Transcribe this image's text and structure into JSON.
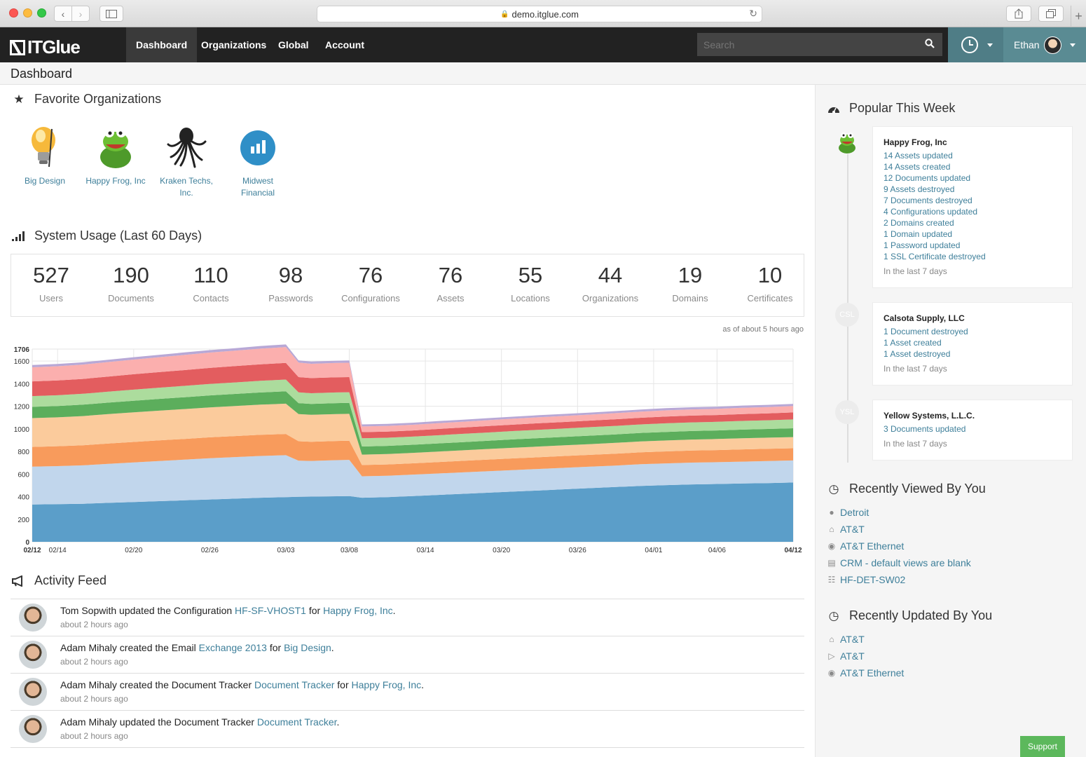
{
  "browser": {
    "url": "demo.itglue.com"
  },
  "nav": {
    "logo_text": "ITGlue",
    "items": [
      "Dashboard",
      "Organizations",
      "Global",
      "Account"
    ],
    "search_placeholder": "Search",
    "user_name": "Ethan"
  },
  "page_title": "Dashboard",
  "favorites": {
    "title": "Favorite Organizations",
    "orgs": [
      {
        "name": "Big Design",
        "icon": "lightbulb-logo"
      },
      {
        "name": "Happy Frog, Inc",
        "icon": "frog-logo"
      },
      {
        "name": "Kraken Techs, Inc.",
        "icon": "kraken-logo"
      },
      {
        "name": "Midwest Financial",
        "icon": "bar-chart-logo"
      }
    ]
  },
  "usage": {
    "title": "System Usage (Last 60 Days)",
    "stats": [
      {
        "value": "527",
        "label": "Users"
      },
      {
        "value": "190",
        "label": "Documents"
      },
      {
        "value": "110",
        "label": "Contacts"
      },
      {
        "value": "98",
        "label": "Passwords"
      },
      {
        "value": "76",
        "label": "Configurations"
      },
      {
        "value": "76",
        "label": "Assets"
      },
      {
        "value": "55",
        "label": "Locations"
      },
      {
        "value": "44",
        "label": "Organizations"
      },
      {
        "value": "19",
        "label": "Domains"
      },
      {
        "value": "10",
        "label": "Certificates"
      }
    ],
    "as_of": "as of about 5 hours ago"
  },
  "chart_data": {
    "type": "area",
    "stacked": true,
    "ylim": [
      0,
      1706
    ],
    "y_ticks": [
      0,
      200,
      400,
      600,
      800,
      1000,
      1200,
      1400,
      1600,
      1706
    ],
    "x_tick_labels": [
      "02/12",
      "02/14",
      "02/20",
      "02/26",
      "03/03",
      "03/08",
      "03/14",
      "03/20",
      "03/26",
      "04/01",
      "04/06",
      "04/12"
    ],
    "x_tick_days": [
      0,
      2,
      8,
      14,
      20,
      25,
      31,
      37,
      43,
      49,
      54,
      60
    ],
    "grid": true,
    "colors": [
      "#5b9ec9",
      "#c1d6ec",
      "#f89b5c",
      "#fbcb9c",
      "#5cae5c",
      "#acdc9d",
      "#e35d5f",
      "#fbafae",
      "#b8a8d6"
    ],
    "x": [
      0,
      2,
      4,
      6,
      8,
      10,
      12,
      14,
      16,
      18,
      20,
      21,
      22,
      24,
      25,
      26,
      28,
      30,
      32,
      34,
      36,
      38,
      40,
      42,
      44,
      46,
      48,
      50,
      52,
      54,
      56,
      58,
      60
    ],
    "series": [
      {
        "values": [
          330,
          333,
          337,
          345,
          352,
          360,
          367,
          375,
          382,
          390,
          395,
          398,
          400,
          403,
          405,
          390,
          395,
          405,
          415,
          425,
          435,
          445,
          455,
          465,
          475,
          485,
          495,
          502,
          508,
          512,
          516,
          520,
          525
        ]
      },
      {
        "values": [
          335,
          337,
          340,
          345,
          350,
          355,
          360,
          365,
          368,
          370,
          372,
          320,
          316,
          320,
          320,
          190,
          190,
          190,
          190,
          190,
          190,
          190,
          190,
          190,
          190,
          190,
          192,
          192,
          193,
          193,
          194,
          195,
          195
        ]
      },
      {
        "values": [
          175,
          176,
          178,
          180,
          182,
          183,
          184,
          185,
          186,
          187,
          188,
          172,
          170,
          170,
          170,
          100,
          100,
          100,
          101,
          102,
          103,
          104,
          104,
          105,
          105,
          105,
          106,
          106,
          107,
          107,
          108,
          108,
          108
        ]
      },
      {
        "values": [
          255,
          256,
          258,
          260,
          262,
          263,
          264,
          265,
          266,
          267,
          268,
          240,
          238,
          238,
          238,
          92,
          92,
          92,
          93,
          93,
          94,
          94,
          95,
          95,
          95,
          96,
          96,
          97,
          97,
          98,
          98,
          99,
          99
        ]
      },
      {
        "values": [
          100,
          100,
          101,
          102,
          103,
          104,
          105,
          106,
          107,
          108,
          109,
          98,
          97,
          97,
          97,
          72,
          72,
          72,
          72,
          73,
          73,
          74,
          74,
          74,
          75,
          75,
          75,
          76,
          76,
          76,
          77,
          77,
          78
        ]
      },
      {
        "values": [
          95,
          95,
          96,
          97,
          98,
          99,
          100,
          101,
          102,
          103,
          104,
          95,
          94,
          94,
          94,
          72,
          72,
          72,
          72,
          73,
          73,
          74,
          74,
          74,
          75,
          75,
          75,
          76,
          76,
          76,
          77,
          77,
          78
        ]
      },
      {
        "values": [
          130,
          131,
          132,
          134,
          136,
          138,
          140,
          142,
          144,
          146,
          148,
          135,
          134,
          134,
          134,
          55,
          55,
          55,
          56,
          56,
          57,
          57,
          58,
          58,
          58,
          59,
          59,
          60,
          60,
          60,
          61,
          61,
          62
        ]
      },
      {
        "values": [
          125,
          126,
          127,
          128,
          130,
          132,
          134,
          136,
          137,
          139,
          140,
          128,
          127,
          127,
          127,
          50,
          50,
          50,
          51,
          51,
          52,
          52,
          53,
          53,
          53,
          54,
          54,
          55,
          55,
          55,
          56,
          56,
          57
        ]
      },
      {
        "values": [
          20,
          20,
          20,
          21,
          21,
          21,
          22,
          22,
          22,
          23,
          23,
          20,
          20,
          20,
          20,
          18,
          18,
          18,
          18,
          18,
          18,
          18,
          18,
          18,
          18,
          18,
          19,
          19,
          19,
          19,
          19,
          19,
          19
        ]
      }
    ]
  },
  "activity": {
    "title": "Activity Feed",
    "items": [
      {
        "parts": [
          "Tom Sopwith updated the Configuration ",
          "HF-SF-VHOST1",
          " for ",
          "Happy Frog, Inc",
          "."
        ],
        "time": "about 2 hours ago"
      },
      {
        "parts": [
          "Adam Mihaly created the Email ",
          "Exchange 2013",
          " for ",
          "Big Design",
          "."
        ],
        "time": "about 2 hours ago"
      },
      {
        "parts": [
          "Adam Mihaly created the Document Tracker ",
          "Document Tracker",
          " for ",
          "Happy Frog, Inc",
          "."
        ],
        "time": "about 2 hours ago"
      },
      {
        "parts": [
          "Adam Mihaly updated the Document Tracker ",
          "Document Tracker",
          ".",
          "",
          ""
        ],
        "time": "about 2 hours ago"
      }
    ]
  },
  "popular": {
    "title": "Popular This Week",
    "cards": [
      {
        "org": "Happy Frog, Inc",
        "avatar": "",
        "actions": [
          "14 Assets updated",
          "14 Assets created",
          "12 Documents updated",
          "9 Assets destroyed",
          "7 Documents destroyed",
          "4 Configurations updated",
          "2 Domains created",
          "1 Domain updated",
          "1 Password updated",
          "1 SSL Certificate destroyed"
        ],
        "when": "In the last 7 days"
      },
      {
        "org": "Calsota Supply, LLC",
        "avatar": "CSL",
        "actions": [
          "1 Document destroyed",
          "1 Asset created",
          "1 Asset destroyed"
        ],
        "when": "In the last 7 days"
      },
      {
        "org": "Yellow Systems, L.L.C.",
        "avatar": "YSL",
        "actions": [
          "3 Documents updated"
        ],
        "when": "In the last 7 days"
      }
    ]
  },
  "recently_viewed": {
    "title": "Recently Viewed By You",
    "items": [
      {
        "label": "Detroit",
        "icon": "map-marker-icon"
      },
      {
        "label": "AT&T",
        "icon": "home-icon"
      },
      {
        "label": "AT&T Ethernet",
        "icon": "globe-icon"
      },
      {
        "label": "CRM - default views are blank",
        "icon": "document-icon"
      },
      {
        "label": "HF-DET-SW02",
        "icon": "sitemap-icon"
      }
    ]
  },
  "recently_updated": {
    "title": "Recently Updated By You",
    "items": [
      {
        "label": "AT&T",
        "icon": "home-icon"
      },
      {
        "label": "AT&T",
        "icon": "play-square-icon"
      },
      {
        "label": "AT&T Ethernet",
        "icon": "globe-icon"
      }
    ]
  },
  "support_label": "Support"
}
